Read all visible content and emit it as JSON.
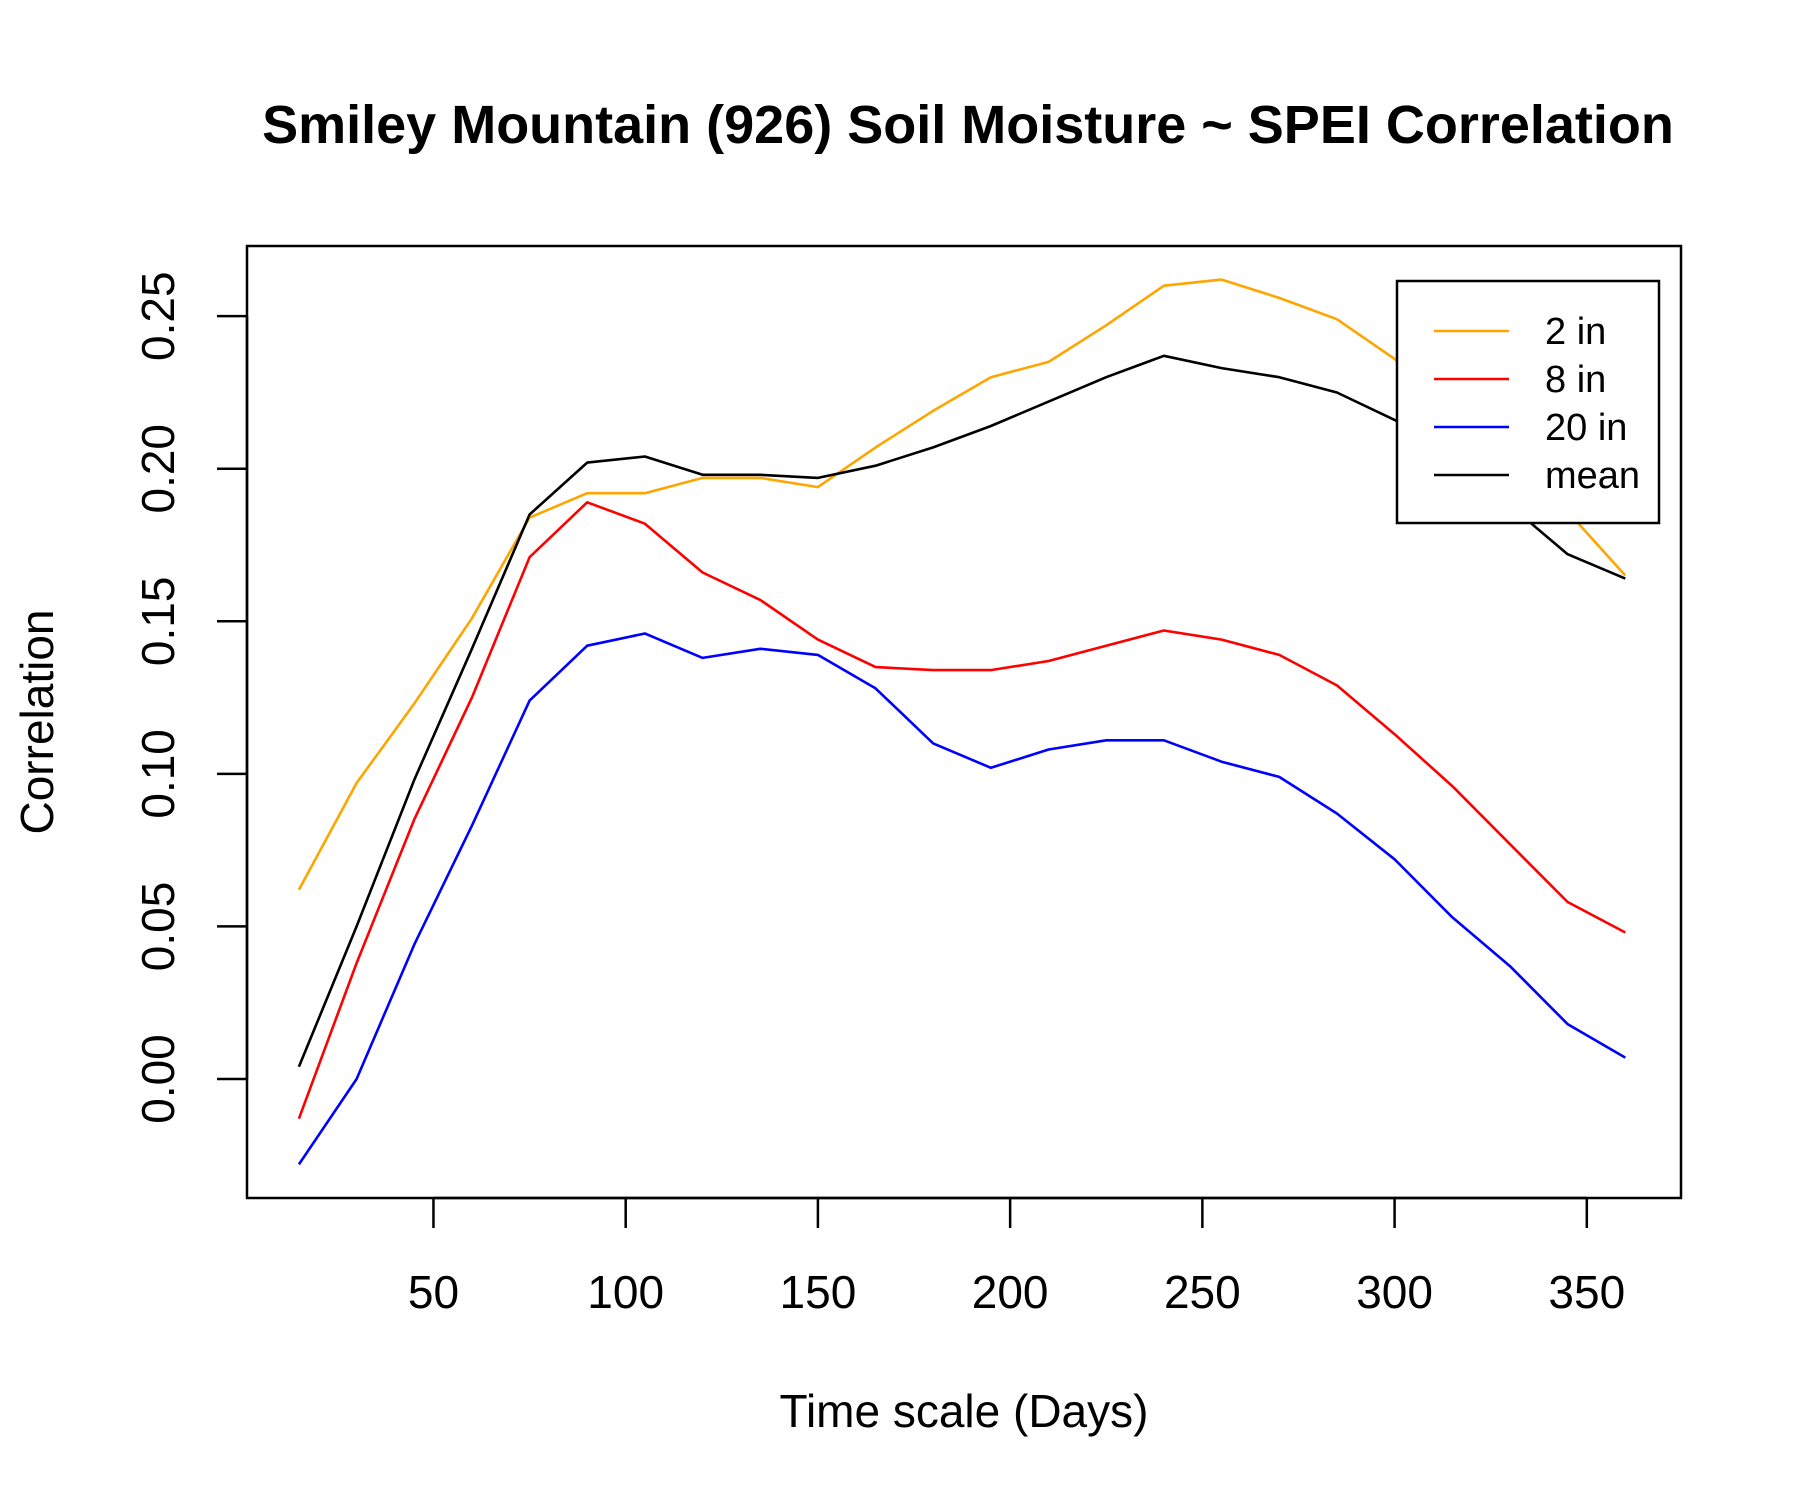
{
  "chart_data": {
    "type": "line",
    "title": "Smiley Mountain (926) Soil Moisture ~ SPEI Correlation",
    "xlabel": "Time scale (Days)",
    "ylabel": "Correlation",
    "xlim": [
      1.5,
      374.5
    ],
    "ylim": [
      -0.039,
      0.273
    ],
    "x_ticks": [
      50,
      100,
      150,
      200,
      250,
      300,
      350
    ],
    "x_tick_labels": [
      "50",
      "100",
      "150",
      "200",
      "250",
      "300",
      "350"
    ],
    "y_ticks": [
      0.0,
      0.05,
      0.1,
      0.15,
      0.2,
      0.25
    ],
    "y_tick_labels": [
      "0.00",
      "0.05",
      "0.10",
      "0.15",
      "0.20",
      "0.25"
    ],
    "grid": false,
    "legend_position": "top-right",
    "x": [
      15,
      30,
      45,
      60,
      75,
      90,
      105,
      120,
      135,
      150,
      165,
      180,
      195,
      210,
      225,
      240,
      255,
      270,
      285,
      300,
      315,
      330,
      345,
      360
    ],
    "series": [
      {
        "name": "2 in",
        "color": "#FFA500",
        "values": [
          0.062,
          0.097,
          0.123,
          0.151,
          0.184,
          0.192,
          0.192,
          0.197,
          0.197,
          0.194,
          0.207,
          0.219,
          0.23,
          0.235,
          0.247,
          0.26,
          0.262,
          0.256,
          0.249,
          0.236,
          0.219,
          0.199,
          0.186,
          0.165
        ]
      },
      {
        "name": "8 in",
        "color": "#FF0000",
        "values": [
          -0.013,
          0.038,
          0.085,
          0.125,
          0.171,
          0.189,
          0.182,
          0.166,
          0.157,
          0.144,
          0.135,
          0.134,
          0.134,
          0.137,
          0.142,
          0.147,
          0.144,
          0.139,
          0.129,
          0.113,
          0.096,
          0.077,
          0.058,
          0.048
        ]
      },
      {
        "name": "20 in",
        "color": "#0000FF",
        "values": [
          -0.028,
          0.0,
          0.044,
          0.083,
          0.124,
          0.142,
          0.146,
          0.138,
          0.141,
          0.139,
          0.128,
          0.11,
          0.102,
          0.108,
          0.111,
          0.111,
          0.104,
          0.099,
          0.087,
          0.072,
          0.053,
          0.037,
          0.018,
          0.007
        ]
      },
      {
        "name": "mean",
        "color": "#000000",
        "values": [
          0.004,
          0.05,
          0.098,
          0.141,
          0.185,
          0.202,
          0.204,
          0.198,
          0.198,
          0.197,
          0.201,
          0.207,
          0.214,
          0.222,
          0.23,
          0.237,
          0.233,
          0.23,
          0.225,
          0.216,
          0.205,
          0.188,
          0.172,
          0.164
        ]
      }
    ]
  }
}
